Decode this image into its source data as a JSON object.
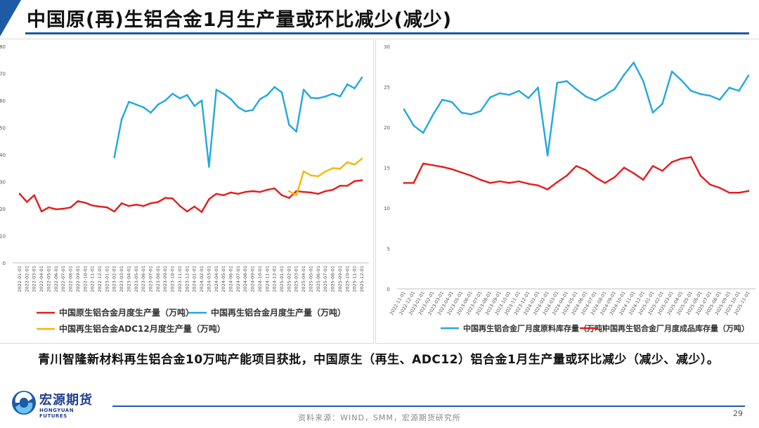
{
  "title": "中国原(再)生铝合金1月生产量或环比减少(减少)",
  "description": "青川智隆新材料再生铝合金10万吨产能项目获批，中国原生（再生、ADC12）铝合金1月生产量或环比减少（减少、减少）。",
  "source": "资料来源：WIND，SMM，宏源期货研究所",
  "page_number": "29",
  "logo": {
    "cn": "宏源期货",
    "en": "HONGYUAN FUTURES"
  },
  "colors": {
    "brand": "#1f5aa6",
    "blue_series": "#22a7e0",
    "red_series": "#e41c1c",
    "yellow_series": "#f5b800"
  },
  "chart_data": [
    {
      "type": "line",
      "ylim": [
        0,
        80
      ],
      "yticks": [
        "0",
        "10",
        "20",
        "30",
        "40",
        "50",
        "60",
        "70",
        "80"
      ],
      "grid": false,
      "legend_position": "bottom",
      "x": [
        "2022-01-01",
        "2022-02-01",
        "2022-03-01",
        "2022-04-01",
        "2022-05-01",
        "2022-06-01",
        "2022-07-01",
        "2022-08-01",
        "2022-09-01",
        "2022-10-01",
        "2022-11-01",
        "2022-12-01",
        "2023-01-01",
        "2023-02-01",
        "2023-03-01",
        "2023-04-01",
        "2023-05-01",
        "2023-06-01",
        "2023-07-01",
        "2023-08-01",
        "2023-09-01",
        "2023-10-01",
        "2023-11-01",
        "2023-12-01",
        "2024-01-01",
        "2024-02-01",
        "2024-03-01",
        "2024-04-01",
        "2024-05-01",
        "2024-06-01",
        "2024-07-01",
        "2024-08-01",
        "2024-09-01",
        "2024-10-01",
        "2024-11-01",
        "2024-12-01",
        "2025-01-01",
        "2025-02-01",
        "2025-03-01",
        "2025-04-01",
        "2025-05-01",
        "2025-06-01",
        "2025-07-01",
        "2025-08-01",
        "2025-09-01",
        "2025-10-01",
        "2025-11-01",
        "2025-12-01"
      ],
      "series": [
        {
          "name": "中国原生铝合金月度生产量（万吨）",
          "color": "#e41c1c",
          "values": [
            25.5,
            22.5,
            25,
            19,
            20.5,
            19.8,
            20,
            20.5,
            22.8,
            22.2,
            21.2,
            20.8,
            20.5,
            19,
            22,
            21,
            21.5,
            21,
            22,
            22.5,
            24,
            23.8,
            21,
            19,
            20.8,
            18.8,
            23.5,
            25.5,
            25,
            26,
            25.5,
            26.2,
            26.5,
            26.2,
            27,
            27.5,
            25,
            24,
            26.5,
            26.2,
            26,
            25.5,
            26.5,
            27,
            28.5,
            28.5,
            30.2,
            30.5
          ]
        },
        {
          "name": "中国再生铝合金月度生产量（万吨）",
          "color": "#22a7e0",
          "values": [
            null,
            null,
            null,
            null,
            null,
            null,
            null,
            null,
            null,
            null,
            null,
            null,
            null,
            39,
            53,
            59.5,
            58.5,
            57.5,
            55.5,
            58.5,
            60,
            62.5,
            60.8,
            62,
            58,
            60,
            35.5,
            64,
            62.5,
            60.5,
            57.5,
            56,
            56.5,
            60.5,
            62,
            65,
            63,
            51,
            48.5,
            64,
            61,
            60.8,
            61.5,
            62.5,
            61.5,
            66,
            64.5,
            68.5
          ]
        },
        {
          "name": "中国再生铝合金ADC12月度生产量（万吨）",
          "color": "#f5b800",
          "values": [
            null,
            null,
            null,
            null,
            null,
            null,
            null,
            null,
            null,
            null,
            null,
            null,
            null,
            null,
            null,
            null,
            null,
            null,
            null,
            null,
            null,
            null,
            null,
            null,
            null,
            null,
            null,
            null,
            null,
            null,
            null,
            null,
            null,
            null,
            null,
            null,
            null,
            26.5,
            25,
            33.8,
            32.3,
            32,
            33.8,
            35,
            34.8,
            37.2,
            36.3,
            38.5
          ]
        }
      ]
    },
    {
      "type": "line",
      "ylim": [
        0,
        30
      ],
      "yticks": [
        "0",
        "5",
        "10",
        "15",
        "20",
        "25",
        "30"
      ],
      "grid": false,
      "legend_position": "bottom",
      "x": [
        "2022-11-01",
        "2022-12-01",
        "2023-01-01",
        "2023-02-01",
        "2023-03-01",
        "2023-04-01",
        "2023-05-01",
        "2023-06-01",
        "2023-07-01",
        "2023-08-01",
        "2023-09-01",
        "2023-10-01",
        "2023-11-01",
        "2023-12-01",
        "2024-01-01",
        "2024-02-01",
        "2024-03-01",
        "2024-04-01",
        "2024-05-01",
        "2024-06-01",
        "2024-07-01",
        "2024-08-01",
        "2024-09-01",
        "2024-10-01",
        "2024-11-01",
        "2024-12-01",
        "2025-01-01",
        "2025-02-01",
        "2025-03-01",
        "2025-04-01",
        "2025-05-01",
        "2025-06-01",
        "2025-07-01",
        "2025-08-01",
        "2025-09-01",
        "2025-10-01",
        "2025-11-01"
      ],
      "series": [
        {
          "name": "中国再生铝合金厂月度原料库存量（万吨）",
          "color": "#22a7e0",
          "values": [
            22.2,
            20.2,
            19.3,
            21.5,
            23.4,
            23.1,
            21.8,
            21.6,
            22,
            23.7,
            24.2,
            24,
            24.5,
            23.6,
            24.9,
            16.5,
            25.5,
            25.7,
            24.7,
            23.8,
            23.3,
            24,
            24.7,
            26.5,
            28,
            25.7,
            21.8,
            22.9,
            26.9,
            25.8,
            24.5,
            24.1,
            23.9,
            23.4,
            24.9,
            24.5,
            26.4
          ]
        },
        {
          "name": "中国再生铝合金厂月度成品库存量（万吨）",
          "color": "#e41c1c",
          "values": [
            13.1,
            13.1,
            15.5,
            15.3,
            15.1,
            14.8,
            14.4,
            14,
            13.5,
            13.1,
            13.3,
            13.1,
            13.3,
            13,
            12.8,
            12.3,
            13.2,
            14,
            15.2,
            14.7,
            13.8,
            13.1,
            13.8,
            15,
            14.3,
            13.5,
            15.2,
            14.6,
            15.7,
            16.1,
            16.3,
            14,
            12.9,
            12.5,
            11.9,
            11.9,
            12.1
          ]
        }
      ]
    }
  ]
}
